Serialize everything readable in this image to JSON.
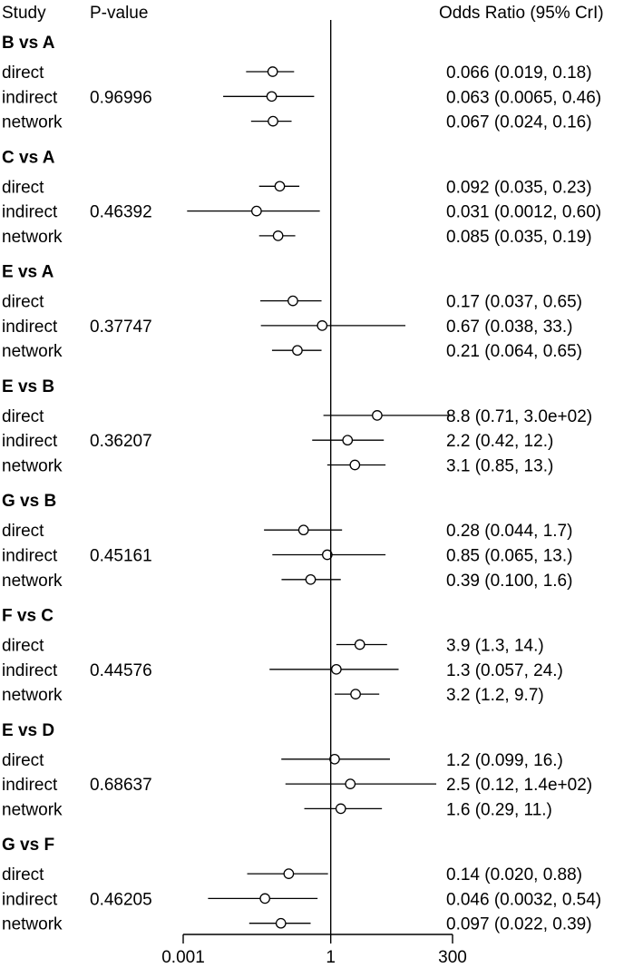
{
  "header": {
    "study": "Study",
    "pvalue": "P-value",
    "or": "Odds Ratio (95% CrI)"
  },
  "chart_data": {
    "type": "forest",
    "xscale": "log",
    "xlim": [
      0.001,
      300
    ],
    "ticks": [
      {
        "value": 0.001,
        "label": "0.001"
      },
      {
        "value": 1,
        "label": "1"
      },
      {
        "value": 300,
        "label": "300"
      }
    ],
    "reference_line": 1,
    "comparisons": [
      {
        "title": "B vs A",
        "pvalue": "0.96996",
        "rows": [
          {
            "label": "direct",
            "est": 0.066,
            "lo": 0.019,
            "hi": 0.18,
            "text": "0.066 (0.019, 0.18)"
          },
          {
            "label": "indirect",
            "est": 0.063,
            "lo": 0.0065,
            "hi": 0.46,
            "text": "0.063 (0.0065, 0.46)"
          },
          {
            "label": "network",
            "est": 0.067,
            "lo": 0.024,
            "hi": 0.16,
            "text": "0.067 (0.024, 0.16)"
          }
        ]
      },
      {
        "title": "C vs A",
        "pvalue": "0.46392",
        "rows": [
          {
            "label": "direct",
            "est": 0.092,
            "lo": 0.035,
            "hi": 0.23,
            "text": "0.092 (0.035, 0.23)"
          },
          {
            "label": "indirect",
            "est": 0.031,
            "lo": 0.0012,
            "hi": 0.6,
            "text": "0.031 (0.0012, 0.60)"
          },
          {
            "label": "network",
            "est": 0.085,
            "lo": 0.035,
            "hi": 0.19,
            "text": "0.085 (0.035, 0.19)"
          }
        ]
      },
      {
        "title": "E vs A",
        "pvalue": "0.37747",
        "rows": [
          {
            "label": "direct",
            "est": 0.17,
            "lo": 0.037,
            "hi": 0.65,
            "text": "0.17 (0.037, 0.65)"
          },
          {
            "label": "indirect",
            "est": 0.67,
            "lo": 0.038,
            "hi": 33,
            "text": "0.67 (0.038,   33.)"
          },
          {
            "label": "network",
            "est": 0.21,
            "lo": 0.064,
            "hi": 0.65,
            "text": "0.21 (0.064, 0.65)"
          }
        ]
      },
      {
        "title": "E vs B",
        "pvalue": "0.36207",
        "rows": [
          {
            "label": "direct",
            "est": 8.8,
            "lo": 0.71,
            "hi": 300,
            "text": "8.8 (0.71, 3.0e+02)"
          },
          {
            "label": "indirect",
            "est": 2.2,
            "lo": 0.42,
            "hi": 12,
            "text": "2.2 (0.42, 12.)"
          },
          {
            "label": "network",
            "est": 3.1,
            "lo": 0.85,
            "hi": 13,
            "text": "3.1 (0.85,   13.)"
          }
        ]
      },
      {
        "title": "G vs B",
        "pvalue": "0.45161",
        "rows": [
          {
            "label": "direct",
            "est": 0.28,
            "lo": 0.044,
            "hi": 1.7,
            "text": "0.28 (0.044, 1.7)"
          },
          {
            "label": "indirect",
            "est": 0.85,
            "lo": 0.065,
            "hi": 13,
            "text": "0.85 (0.065, 13.)"
          },
          {
            "label": "network",
            "est": 0.39,
            "lo": 0.1,
            "hi": 1.6,
            "text": "0.39 (0.100, 1.6)"
          }
        ]
      },
      {
        "title": "F vs C",
        "pvalue": "0.44576",
        "rows": [
          {
            "label": "direct",
            "est": 3.9,
            "lo": 1.3,
            "hi": 14,
            "text": "3.9 (1.3, 14.)"
          },
          {
            "label": "indirect",
            "est": 1.3,
            "lo": 0.057,
            "hi": 24,
            "text": "1.3 (0.057, 24.)"
          },
          {
            "label": "network",
            "est": 3.2,
            "lo": 1.2,
            "hi": 9.7,
            "text": "3.2 (1.2, 9.7)"
          }
        ]
      },
      {
        "title": "E vs D",
        "pvalue": "0.68637",
        "rows": [
          {
            "label": "direct",
            "est": 1.2,
            "lo": 0.099,
            "hi": 16,
            "text": "1.2 (0.099,   16.)"
          },
          {
            "label": "indirect",
            "est": 2.5,
            "lo": 0.12,
            "hi": 140,
            "text": "2.5 (0.12, 1.4e+02)"
          },
          {
            "label": "network",
            "est": 1.6,
            "lo": 0.29,
            "hi": 11,
            "text": "1.6 (0.29, 11.)"
          }
        ]
      },
      {
        "title": "G vs F",
        "pvalue": "0.46205",
        "rows": [
          {
            "label": "direct",
            "est": 0.14,
            "lo": 0.02,
            "hi": 0.88,
            "text": "0.14 (0.020, 0.88)"
          },
          {
            "label": "indirect",
            "est": 0.046,
            "lo": 0.0032,
            "hi": 0.54,
            "text": "0.046 (0.0032, 0.54)"
          },
          {
            "label": "network",
            "est": 0.097,
            "lo": 0.022,
            "hi": 0.39,
            "text": "0.097 (0.022, 0.39)"
          }
        ]
      }
    ]
  }
}
